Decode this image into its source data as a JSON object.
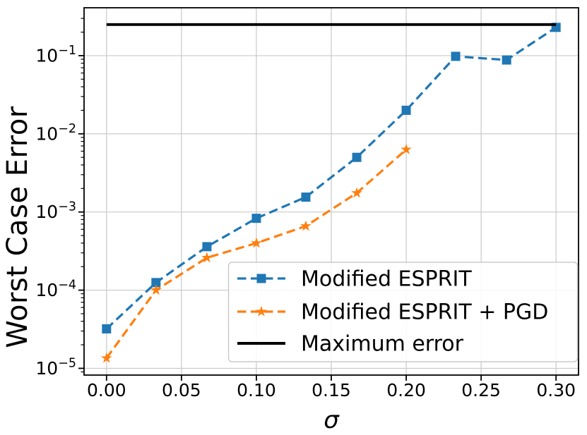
{
  "figure": {
    "background": "#ffffff"
  },
  "chart_data": {
    "type": "line",
    "title": "",
    "xlabel": "σ",
    "ylabel": "Worst Case Error",
    "x_scale": "linear",
    "y_scale": "log",
    "xlim": [
      -0.015,
      0.315
    ],
    "ylim": [
      8.2e-06,
      0.41
    ],
    "x_ticks": [
      0.0,
      0.05,
      0.1,
      0.15,
      0.2,
      0.25,
      0.3
    ],
    "x_tick_labels": [
      "0.00",
      "0.05",
      "0.10",
      "0.15",
      "0.20",
      "0.25",
      "0.30"
    ],
    "y_tick_exponents": [
      -1,
      -2,
      -3,
      -4,
      -5
    ],
    "grid": true,
    "grid_color": "#c9c9c9",
    "series": [
      {
        "name": "Modified ESPRIT",
        "color": "#1f77b4",
        "linestyle": "dashed",
        "marker": "square",
        "x": [
          0.0,
          0.033,
          0.067,
          0.1,
          0.133,
          0.167,
          0.2,
          0.233,
          0.267,
          0.3
        ],
        "y": [
          3.2e-05,
          0.000125,
          0.00036,
          0.00083,
          0.00155,
          0.005,
          0.02,
          0.098,
          0.088,
          0.23
        ]
      },
      {
        "name": "Modified ESPRIT + PGD",
        "color": "#ff7f0e",
        "linestyle": "dashed",
        "marker": "star",
        "x": [
          0.0,
          0.033,
          0.067,
          0.1,
          0.133,
          0.167,
          0.2
        ],
        "y": [
          1.35e-05,
          0.0001,
          0.00026,
          0.0004,
          0.00066,
          0.00175,
          0.0063
        ]
      },
      {
        "name": "Maximum error",
        "color": "#000000",
        "linestyle": "solid",
        "marker": "none",
        "x": [
          0.0,
          0.3
        ],
        "y": [
          0.25,
          0.25
        ]
      }
    ],
    "legend": {
      "position": "lower right",
      "labels": [
        "Modified ESPRIT",
        "Modified ESPRIT + PGD",
        "Maximum error"
      ]
    }
  }
}
